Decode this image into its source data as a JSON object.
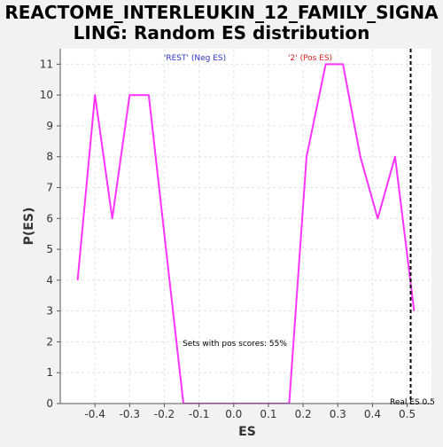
{
  "chart_data": {
    "type": "line",
    "title_line1": "REACTOME_INTERLEUKIN_12_FAMILY_SIGNA",
    "title_line2": "LING: Random ES distribution",
    "xlabel": "ES",
    "ylabel": "P(ES)",
    "xlim": [
      -0.5,
      0.57
    ],
    "ylim": [
      0,
      11.5
    ],
    "x_ticks": [
      -0.4,
      -0.3,
      -0.2,
      -0.1,
      0.0,
      0.1,
      0.2,
      0.3,
      0.4,
      0.5
    ],
    "x_tick_labels": [
      "-0.4",
      "-0.3",
      "-0.2",
      "-0.1",
      "0.0",
      "0.1",
      "0.2",
      "0.3",
      "0.4",
      "0.5"
    ],
    "y_ticks": [
      0,
      1,
      2,
      3,
      4,
      5,
      6,
      7,
      8,
      9,
      10,
      11
    ],
    "y_tick_labels": [
      "0",
      "1",
      "2",
      "3",
      "4",
      "5",
      "6",
      "7",
      "8",
      "9",
      "10",
      "11"
    ],
    "grid": true,
    "series": [
      {
        "color": "#ff33ff",
        "x": [
          -0.45,
          -0.4,
          -0.35,
          -0.3,
          -0.245,
          -0.195,
          -0.145,
          -0.095,
          -0.045,
          0.005,
          0.055,
          0.105,
          0.16,
          0.21,
          0.265,
          0.315,
          0.365,
          0.415,
          0.465,
          0.52
        ],
        "y": [
          4,
          10,
          6,
          10,
          10,
          5,
          0,
          0,
          0,
          0,
          0,
          0,
          0,
          8,
          11,
          11,
          8,
          6,
          8,
          3
        ]
      }
    ],
    "real_es": 0.51,
    "annotations": {
      "neg_label": "'REST' (Neg ES)",
      "neg_color": "#3333cc",
      "pos_label": "'2' (Pos ES)",
      "pos_color": "#dd2222",
      "pos_scores": "Sets with pos scores: 55%",
      "real_es_label": "Real ES 0.5"
    }
  }
}
